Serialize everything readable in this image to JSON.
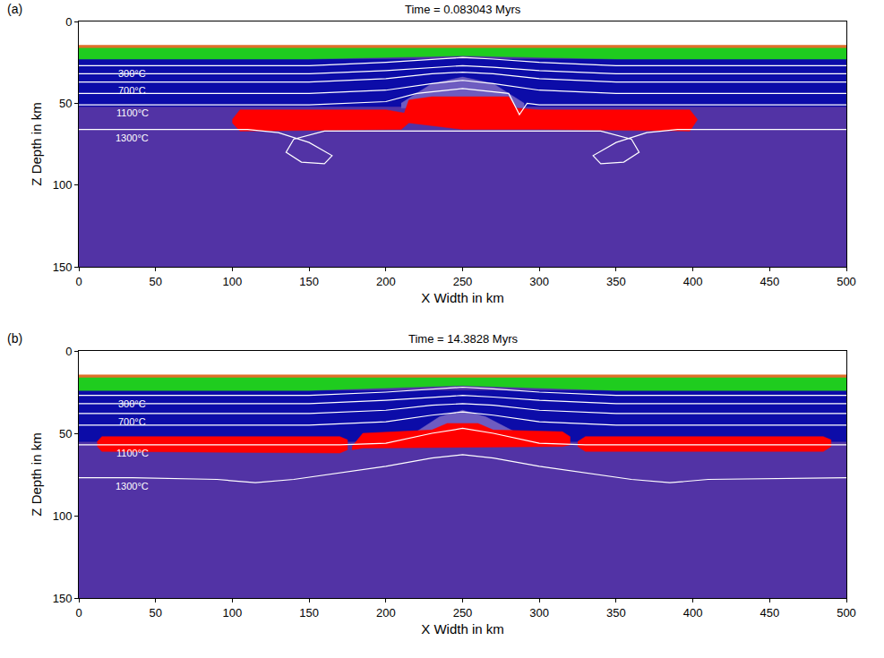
{
  "chart_data": [
    {
      "type": "area",
      "panel": "(a)",
      "title": "Time = 0.083043 Myrs",
      "x_label": "X Width in km",
      "y_label": "Z Depth in km",
      "xlim": [
        0,
        500
      ],
      "ylim": [
        150,
        0
      ],
      "xticks": [
        0,
        50,
        100,
        150,
        200,
        250,
        300,
        350,
        400,
        450,
        500
      ],
      "yticks": [
        0,
        50,
        100,
        150
      ],
      "regions": [
        {
          "color": "#5233a5",
          "x": [
            0,
            500,
            500,
            0
          ],
          "y": [
            15,
            15,
            150,
            150
          ]
        },
        {
          "color": "#0c0ca8",
          "x": [
            0,
            500,
            500,
            0
          ],
          "y": [
            23,
            23,
            52,
            52
          ]
        },
        {
          "color": "#1fcc1f",
          "x": [
            0,
            500,
            500,
            350,
            250,
            150,
            0
          ],
          "y": [
            15,
            15,
            23,
            23,
            21,
            23,
            23
          ]
        },
        {
          "color": "#e0702a",
          "x": [
            0,
            500,
            500,
            0
          ],
          "y": [
            14.5,
            14.5,
            16,
            16
          ]
        },
        {
          "color": "#6e5cc0",
          "x": [
            210,
            230,
            250,
            270,
            290,
            290,
            210
          ],
          "y": [
            50,
            38,
            34,
            38,
            50,
            53,
            53
          ]
        },
        {
          "color": "#ff0000",
          "x": [
            100,
            105,
            200,
            212,
            215,
            230,
            280,
            285,
            300,
            398,
            403,
            398,
            300,
            290,
            250,
            215,
            210,
            105,
            100
          ],
          "y": [
            60,
            54,
            54,
            56,
            48,
            46,
            46,
            53,
            54,
            54,
            60,
            67,
            66,
            66,
            66,
            62,
            66,
            67,
            62
          ]
        }
      ],
      "isotherms": [
        {
          "label": "300°C",
          "color": "#ffffff",
          "x": [
            0,
            35,
            150,
            200,
            230,
            250,
            270,
            300,
            350,
            500
          ],
          "y": [
            27,
            27,
            27,
            25,
            23,
            22,
            23,
            25,
            27,
            27
          ]
        },
        {
          "color": "#ffffff",
          "x": [
            0,
            35,
            150,
            200,
            230,
            250,
            270,
            300,
            350,
            500
          ],
          "y": [
            32,
            32,
            32,
            30,
            28,
            27,
            28,
            30,
            32,
            32
          ]
        },
        {
          "label": "700°C",
          "color": "#ffffff",
          "x": [
            0,
            35,
            150,
            200,
            230,
            250,
            270,
            300,
            350,
            500
          ],
          "y": [
            37,
            37,
            37,
            35,
            32,
            31,
            32,
            35,
            37,
            37
          ]
        },
        {
          "color": "#ffffff",
          "x": [
            0,
            35,
            150,
            200,
            230,
            250,
            270,
            300,
            350,
            500
          ],
          "y": [
            44,
            44,
            44,
            42,
            38,
            36,
            38,
            42,
            44,
            44
          ]
        },
        {
          "label": "1100°C",
          "color": "#ffffff",
          "x": [
            0,
            35,
            150,
            200,
            220,
            250,
            280,
            287,
            292,
            300,
            350,
            500
          ],
          "y": [
            51,
            51,
            51,
            49,
            44,
            41,
            44,
            57,
            50,
            51,
            51,
            51
          ]
        },
        {
          "label": "1300°C",
          "color": "#ffffff",
          "x": [
            0,
            35,
            110,
            130,
            150,
            165,
            160,
            145,
            135,
            140,
            160,
            250,
            340,
            360,
            365,
            355,
            340,
            335,
            350,
            370,
            390,
            500
          ],
          "y": [
            66,
            66,
            66,
            68,
            74,
            82,
            87,
            86,
            80,
            72,
            67,
            67,
            67,
            72,
            80,
            86,
            87,
            82,
            74,
            68,
            66,
            66
          ]
        }
      ]
    },
    {
      "type": "area",
      "panel": "(b)",
      "title": "Time = 14.3828 Myrs",
      "x_label": "X Width in km",
      "y_label": "Z Depth in km",
      "xlim": [
        0,
        500
      ],
      "ylim": [
        150,
        0
      ],
      "xticks": [
        0,
        50,
        100,
        150,
        200,
        250,
        300,
        350,
        400,
        450,
        500
      ],
      "yticks": [
        0,
        50,
        100,
        150
      ],
      "regions": [
        {
          "color": "#5233a5",
          "x": [
            0,
            500,
            500,
            0
          ],
          "y": [
            15,
            15,
            150,
            150
          ]
        },
        {
          "color": "#0c0ca8",
          "x": [
            0,
            500,
            500,
            0
          ],
          "y": [
            24,
            24,
            55,
            55
          ]
        },
        {
          "color": "#1fcc1f",
          "x": [
            0,
            500,
            500,
            350,
            250,
            150,
            0
          ],
          "y": [
            15,
            15,
            24,
            24,
            21,
            24,
            24
          ]
        },
        {
          "color": "#e0702a",
          "x": [
            0,
            500,
            500,
            0
          ],
          "y": [
            14.5,
            14.5,
            16,
            16
          ]
        },
        {
          "color": "#6e5cc0",
          "x": [
            215,
            235,
            250,
            265,
            290,
            290,
            215
          ],
          "y": [
            52,
            40,
            36,
            40,
            52,
            55,
            55
          ]
        },
        {
          "color": "#ff0000",
          "x": [
            12,
            15,
            170,
            175,
            175,
            170,
            15,
            12
          ],
          "y": [
            55,
            52,
            52,
            54,
            60,
            62,
            61,
            58
          ]
        },
        {
          "color": "#ff0000",
          "x": [
            178,
            185,
            230,
            240,
            260,
            270,
            315,
            320,
            320,
            315,
            185,
            178
          ],
          "y": [
            58,
            50,
            48,
            44,
            44,
            48,
            49,
            52,
            57,
            58,
            59,
            60
          ]
        },
        {
          "color": "#ff0000",
          "x": [
            325,
            330,
            485,
            490,
            490,
            485,
            330,
            325
          ],
          "y": [
            55,
            52,
            52,
            54,
            58,
            61,
            61,
            58
          ]
        }
      ],
      "isotherms": [
        {
          "label": "300°C",
          "color": "#ffffff",
          "x": [
            0,
            35,
            150,
            200,
            230,
            250,
            270,
            300,
            350,
            500
          ],
          "y": [
            27,
            27,
            27,
            25,
            23,
            22,
            23,
            25,
            27,
            27
          ]
        },
        {
          "color": "#ffffff",
          "x": [
            0,
            35,
            150,
            200,
            230,
            250,
            270,
            300,
            350,
            500
          ],
          "y": [
            32,
            32,
            32,
            30,
            28,
            27,
            28,
            30,
            32,
            32
          ]
        },
        {
          "label": "700°C",
          "color": "#ffffff",
          "x": [
            0,
            35,
            150,
            200,
            230,
            250,
            270,
            300,
            350,
            500
          ],
          "y": [
            38,
            38,
            38,
            36,
            33,
            32,
            33,
            36,
            38,
            38
          ]
        },
        {
          "color": "#ffffff",
          "x": [
            0,
            35,
            150,
            200,
            230,
            250,
            270,
            300,
            350,
            500
          ],
          "y": [
            45,
            45,
            45,
            43,
            39,
            37,
            39,
            43,
            45,
            45
          ]
        },
        {
          "label": "1100°C",
          "color": "#ffffff",
          "x": [
            0,
            35,
            170,
            200,
            230,
            250,
            270,
            300,
            330,
            500
          ],
          "y": [
            57,
            57,
            57,
            56,
            50,
            47,
            50,
            56,
            57,
            57
          ]
        },
        {
          "label": "1300°C",
          "color": "#ffffff",
          "x": [
            0,
            35,
            90,
            115,
            140,
            200,
            230,
            250,
            270,
            300,
            360,
            385,
            410,
            500
          ],
          "y": [
            77,
            77,
            78,
            80,
            78,
            70,
            65,
            63,
            65,
            70,
            78,
            80,
            78,
            77
          ]
        }
      ]
    }
  ]
}
